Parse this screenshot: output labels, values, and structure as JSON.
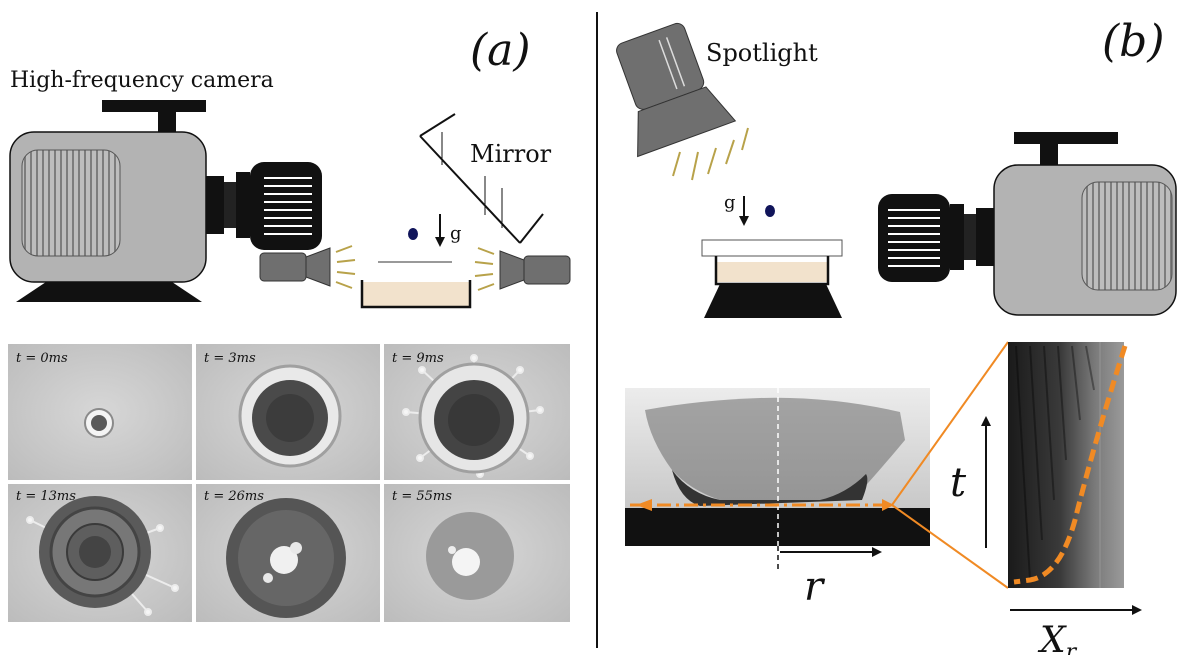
{
  "panel_a": {
    "label": "(a)",
    "camera_label": "High-frequency camera",
    "mirror_label": "Mirror",
    "gravity_label": "g",
    "frames": [
      {
        "label": "t = 0ms"
      },
      {
        "label": "t = 3ms"
      },
      {
        "label": "t = 9ms"
      },
      {
        "label": "t = 13ms"
      },
      {
        "label": "t = 26ms"
      },
      {
        "label": "t = 55ms"
      }
    ]
  },
  "panel_b": {
    "label": "(b)",
    "spotlight_label": "Spotlight",
    "gravity_label": "g",
    "r_label": "r",
    "t_label": "t",
    "x_label": "X",
    "x_subscript": "r"
  },
  "colors": {
    "camera_body": "#b3b3b3",
    "dark": "#111111",
    "lamp": "#6f6f6f",
    "light_rays": "#b8a24a",
    "sample": "#f2e2cc",
    "trace": "#f08a24"
  }
}
